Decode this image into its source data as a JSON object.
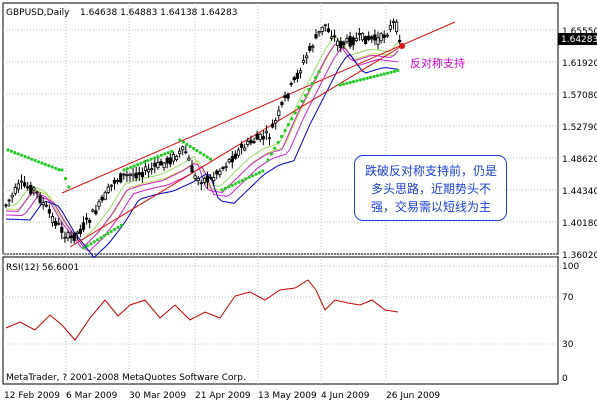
{
  "header": {
    "symbol_period": "GBPUSD,Daily",
    "ohlc": "1.64638 1.64883 1.64138 1.64283"
  },
  "price_axis": {
    "labels": [
      "1.65550",
      "1.61920",
      "1.57080",
      "1.52790",
      "1.48620",
      "1.44340",
      "1.40180",
      "1.36020"
    ],
    "current_price": "1.64283"
  },
  "rsi_panel": {
    "title": "RSI(12) 56.6001",
    "levels": [
      "100",
      "70",
      "30",
      "0"
    ],
    "copyright": "MetaTrader, ? 2001-2008 MetaQuotes Software Corp."
  },
  "time_axis": {
    "labels": [
      "12 Feb 2009",
      "6 Mar 2009",
      "30 Mar 2009",
      "21 Apr 2009",
      "13 May 2009",
      "4 Jun 2009",
      "26 Jun 2009"
    ]
  },
  "annotations": {
    "support_label": "反对称支持",
    "note": "跌破反对称支持前，仍是多头思路，近期势头不强，交易需以短线为主"
  },
  "colors": {
    "background": "#ffffff",
    "grid": "#c0c0c0",
    "candles": "#000000",
    "channel": "#e01010",
    "psar": "#22cc22",
    "rsi": "#cc0000",
    "annotation": "#1a3fd6",
    "support_label": "#cc00cc",
    "ma_blue": "#0000cc",
    "ma_magenta": "#cc22cc",
    "ma_yellowgreen": "#bbdd44",
    "ma_lightgreen": "#99dd66"
  },
  "chart_data": {
    "type": "candlestick",
    "x": [
      "12 Feb 2009",
      "6 Mar 2009",
      "30 Mar 2009",
      "21 Apr 2009",
      "13 May 2009",
      "4 Jun 2009",
      "26 Jun 2009"
    ],
    "close": [
      1.435,
      1.405,
      1.482,
      1.462,
      1.532,
      1.638,
      1.6428
    ],
    "ylim": [
      1.346,
      1.672
    ],
    "rsi": {
      "name": "RSI(12)",
      "last": 56.6001,
      "ylim": [
        0,
        100
      ]
    }
  }
}
